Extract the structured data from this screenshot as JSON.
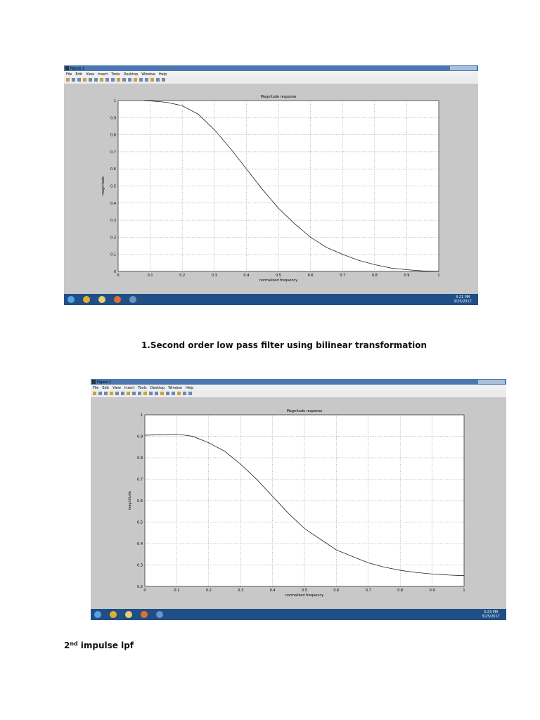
{
  "windows": [
    {
      "title": "Figure 1",
      "menu": [
        "File",
        "Edit",
        "View",
        "Insert",
        "Tools",
        "Desktop",
        "Window",
        "Help"
      ],
      "time": "3:21 PM",
      "date": "3/25/2017"
    },
    {
      "title": "Figure 1",
      "menu": [
        "File",
        "Edit",
        "View",
        "Insert",
        "Tools",
        "Desktop",
        "Window",
        "Help"
      ],
      "time": "3:23 PM",
      "date": "3/25/2017"
    }
  ],
  "chart_data": [
    {
      "type": "line",
      "title": "Magnitude response",
      "x_label": "normalized frequency",
      "y_label": "magnitude",
      "x": [
        0.08,
        0.1,
        0.15,
        0.2,
        0.25,
        0.3,
        0.35,
        0.4,
        0.45,
        0.5,
        0.55,
        0.6,
        0.65,
        0.7,
        0.75,
        0.8,
        0.85,
        0.9,
        0.95,
        1.0
      ],
      "series": [
        {
          "color": "#000000",
          "values": [
            1.0,
            0.998,
            0.99,
            0.97,
            0.92,
            0.83,
            0.72,
            0.6,
            0.48,
            0.37,
            0.28,
            0.2,
            0.14,
            0.1,
            0.065,
            0.04,
            0.02,
            0.01,
            0.003,
            0.0
          ]
        }
      ],
      "xlim": [
        0,
        1
      ],
      "ylim": [
        0,
        1
      ],
      "xticks": [
        0,
        0.1,
        0.2,
        0.3,
        0.4,
        0.5,
        0.6,
        0.7,
        0.8,
        0.9,
        1
      ],
      "yticks": [
        0,
        0.1,
        0.2,
        0.3,
        0.4,
        0.5,
        0.6,
        0.7,
        0.8,
        0.9,
        1
      ],
      "grid": true
    },
    {
      "type": "line",
      "title": "Magnitude response",
      "x_label": "normalized frequency",
      "y_label": "magnitude",
      "x": [
        0,
        0.05,
        0.1,
        0.15,
        0.2,
        0.25,
        0.3,
        0.35,
        0.4,
        0.45,
        0.5,
        0.55,
        0.6,
        0.65,
        0.7,
        0.75,
        0.8,
        0.85,
        0.9,
        0.95,
        1.0
      ],
      "series": [
        {
          "color": "#000000",
          "values": [
            0.905,
            0.907,
            0.91,
            0.9,
            0.87,
            0.83,
            0.77,
            0.7,
            0.62,
            0.54,
            0.47,
            0.42,
            0.37,
            0.34,
            0.31,
            0.29,
            0.275,
            0.265,
            0.258,
            0.253,
            0.25
          ]
        }
      ],
      "xlim": [
        0,
        1
      ],
      "ylim": [
        0.2,
        1
      ],
      "xticks": [
        0,
        0.1,
        0.2,
        0.3,
        0.4,
        0.5,
        0.6,
        0.7,
        0.8,
        0.9,
        1
      ],
      "yticks": [
        0.2,
        0.3,
        0.4,
        0.5,
        0.6,
        0.7,
        0.8,
        0.9,
        1
      ],
      "grid": true
    }
  ],
  "captions": {
    "first": "1.Second order low pass filter using bilinear transformation",
    "second": {
      "number": "2",
      "suffix": "nd",
      "text": "impulse  lpf"
    }
  }
}
